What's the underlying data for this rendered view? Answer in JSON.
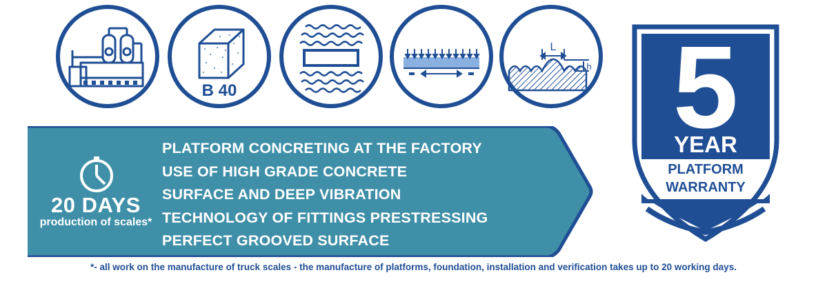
{
  "icons": [
    {
      "name": "factory-icon"
    },
    {
      "name": "concrete-block-icon",
      "label": "B 40"
    },
    {
      "name": "vibration-icon"
    },
    {
      "name": "prestressing-icon"
    },
    {
      "name": "grooved-surface-icon",
      "label_l": "L",
      "label_h": "h"
    }
  ],
  "banner": {
    "days_title": "20 DAYS",
    "days_subtitle": "production of scales*",
    "features": [
      "PLATFORM CONCRETING AT THE FACTORY",
      "USE OF HIGH GRADE CONCRETE",
      "SURFACE AND DEEP VIBRATION",
      "TECHNOLOGY OF FITTINGS PRESTRESSING",
      "PERFECT GROOVED SURFACE"
    ]
  },
  "warranty": {
    "number": "5",
    "year": "YEAR",
    "line1": "PLATFORM",
    "line2": "WARRANTY"
  },
  "footnote": "*- all work on the manufacture of truck scales - the manufacture of platforms, foundation, installation and verification takes up to 20 working days.",
  "colors": {
    "navy": "#1f4e94",
    "banner": "#3f8fa8",
    "banner_border": "#1f4e94",
    "arrow_blue": "#5b8bd1"
  }
}
